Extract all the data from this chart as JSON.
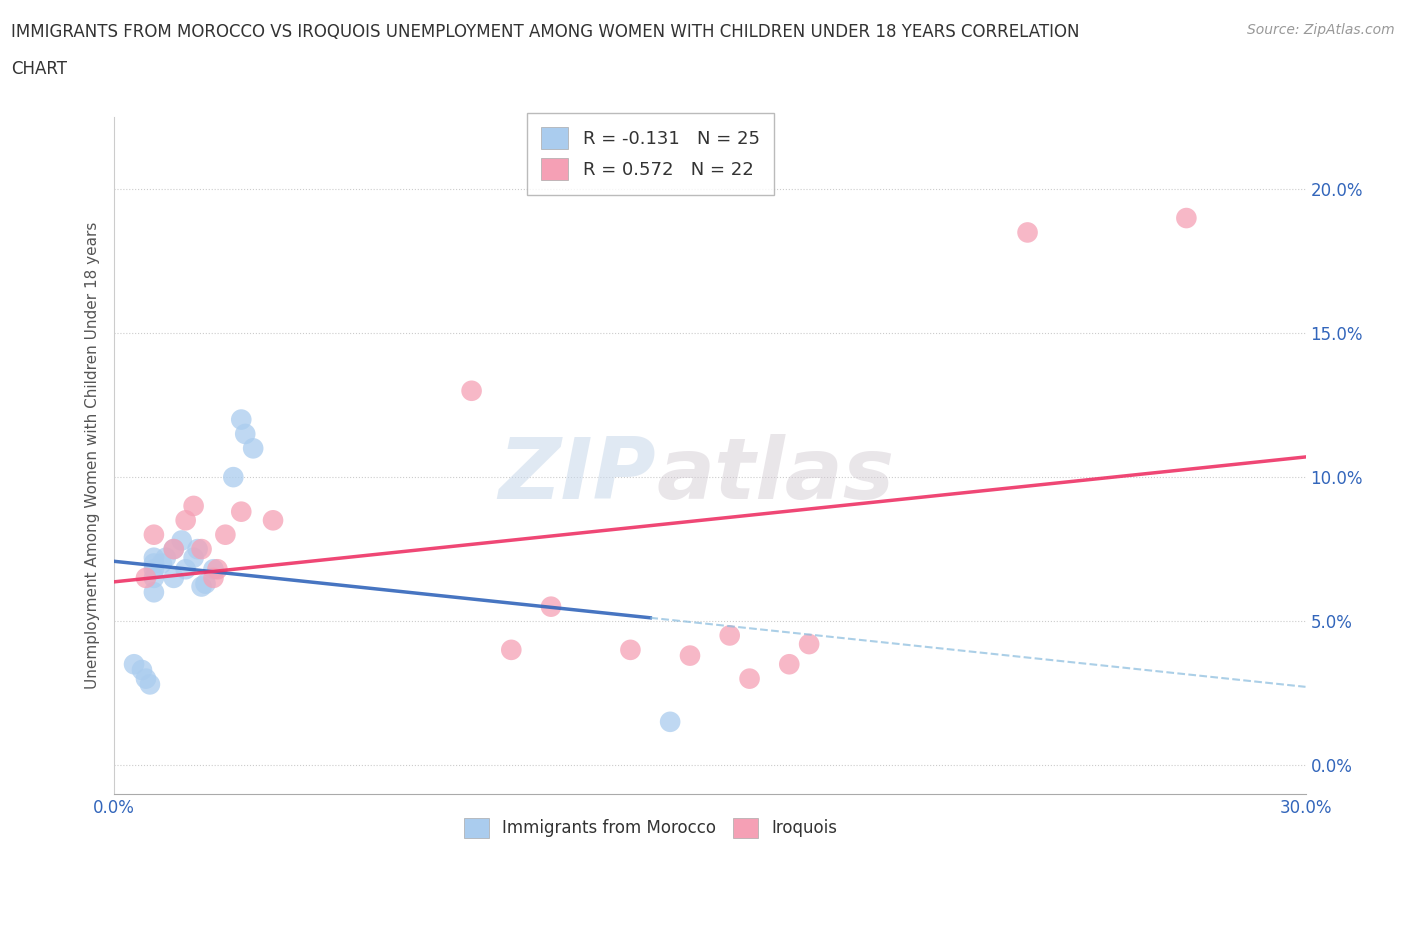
{
  "title_line1": "IMMIGRANTS FROM MOROCCO VS IROQUOIS UNEMPLOYMENT AMONG WOMEN WITH CHILDREN UNDER 18 YEARS CORRELATION",
  "title_line2": "CHART",
  "source": "Source: ZipAtlas.com",
  "ylabel": "Unemployment Among Women with Children Under 18 years",
  "xlim": [
    0.0,
    0.3
  ],
  "ylim": [
    -0.01,
    0.225
  ],
  "yticks": [
    0.0,
    0.05,
    0.1,
    0.15,
    0.2
  ],
  "ytick_labels": [
    "0.0%",
    "5.0%",
    "10.0%",
    "15.0%",
    "20.0%"
  ],
  "xtick_labels_show": [
    "0.0%",
    "30.0%"
  ],
  "legend_blue_label": "Immigrants from Morocco",
  "legend_pink_label": "Iroquois",
  "legend_R_blue": "R = -0.131",
  "legend_N_blue": "N = 25",
  "legend_R_pink": "R = 0.572",
  "legend_N_pink": "N = 22",
  "blue_color": "#aaccee",
  "pink_color": "#f5a0b5",
  "blue_line_color": "#3366bb",
  "pink_line_color": "#ee3366",
  "watermark_ZIP": "ZIP",
  "watermark_atlas": "atlas",
  "background_color": "#ffffff",
  "blue_x": [
    0.005,
    0.007,
    0.008,
    0.009,
    0.01,
    0.01,
    0.01,
    0.01,
    0.01,
    0.012,
    0.013,
    0.015,
    0.015,
    0.017,
    0.018,
    0.02,
    0.021,
    0.022,
    0.023,
    0.025,
    0.03,
    0.032,
    0.033,
    0.035,
    0.14
  ],
  "blue_y": [
    0.035,
    0.033,
    0.03,
    0.028,
    0.068,
    0.065,
    0.06,
    0.07,
    0.072,
    0.07,
    0.072,
    0.075,
    0.065,
    0.078,
    0.068,
    0.072,
    0.075,
    0.062,
    0.063,
    0.068,
    0.1,
    0.12,
    0.115,
    0.11,
    0.015
  ],
  "pink_x": [
    0.008,
    0.01,
    0.015,
    0.018,
    0.02,
    0.022,
    0.025,
    0.026,
    0.028,
    0.032,
    0.04,
    0.09,
    0.1,
    0.11,
    0.13,
    0.145,
    0.155,
    0.16,
    0.17,
    0.175,
    0.23,
    0.27
  ],
  "pink_y": [
    0.065,
    0.08,
    0.075,
    0.085,
    0.09,
    0.075,
    0.065,
    0.068,
    0.08,
    0.088,
    0.085,
    0.13,
    0.04,
    0.055,
    0.04,
    0.038,
    0.045,
    0.03,
    0.035,
    0.042,
    0.185,
    0.19
  ]
}
